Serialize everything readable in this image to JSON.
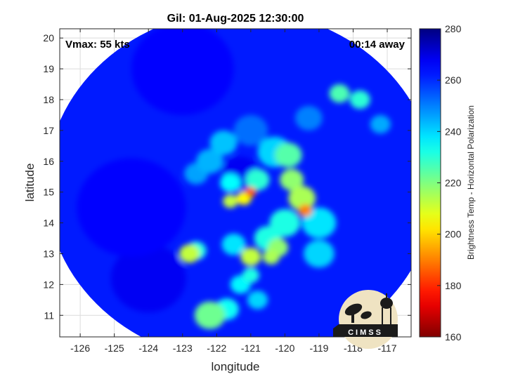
{
  "chart_data": {
    "type": "heatmap",
    "title": "Gil: 01-Aug-2025 12:30:00",
    "xlabel": "longitude",
    "ylabel": "latitude",
    "xlim": [
      -126.6,
      -116.3
    ],
    "ylim": [
      10.3,
      20.3
    ],
    "xticks": [
      -126,
      -125,
      -124,
      -123,
      -122,
      -121,
      -120,
      -119,
      -118,
      -117
    ],
    "yticks": [
      11,
      12,
      13,
      14,
      15,
      16,
      17,
      18,
      19,
      20
    ],
    "grid": true,
    "annotations": {
      "vmax": "Vmax: 55 kts",
      "offset": "00:14 away"
    },
    "colorbar": {
      "label": "Brightness Temp - Horizontal Polarization",
      "range": [
        160,
        280
      ],
      "ticks": [
        160,
        180,
        200,
        220,
        240,
        260,
        280
      ],
      "colormap": "jet"
    },
    "swath": {
      "center_lon": -121.3,
      "center_lat": 15.2,
      "radius_deg": 5.7
    },
    "background_temp": 262,
    "features": [
      {
        "lon": -121.3,
        "lat": 15.6,
        "r": 0.55,
        "temp": 268
      },
      {
        "lon": -121.0,
        "lat": 15.0,
        "r": 0.16,
        "temp": 185
      },
      {
        "lon": -121.2,
        "lat": 14.8,
        "r": 0.22,
        "temp": 205
      },
      {
        "lon": -121.6,
        "lat": 14.7,
        "r": 0.22,
        "temp": 212
      },
      {
        "lon": -120.8,
        "lat": 15.4,
        "r": 0.35,
        "temp": 230
      },
      {
        "lon": -121.6,
        "lat": 15.3,
        "r": 0.3,
        "temp": 235
      },
      {
        "lon": -120.3,
        "lat": 16.3,
        "r": 0.5,
        "temp": 240
      },
      {
        "lon": -119.9,
        "lat": 16.2,
        "r": 0.4,
        "temp": 225
      },
      {
        "lon": -119.8,
        "lat": 15.4,
        "r": 0.35,
        "temp": 218
      },
      {
        "lon": -119.4,
        "lat": 14.4,
        "r": 0.2,
        "temp": 190
      },
      {
        "lon": -119.5,
        "lat": 14.8,
        "r": 0.4,
        "temp": 215
      },
      {
        "lon": -120.0,
        "lat": 14.0,
        "r": 0.45,
        "temp": 232
      },
      {
        "lon": -119.0,
        "lat": 14.0,
        "r": 0.5,
        "temp": 238
      },
      {
        "lon": -120.5,
        "lat": 13.5,
        "r": 0.4,
        "temp": 232
      },
      {
        "lon": -120.2,
        "lat": 13.2,
        "r": 0.3,
        "temp": 218
      },
      {
        "lon": -121.0,
        "lat": 12.9,
        "r": 0.3,
        "temp": 212
      },
      {
        "lon": -120.4,
        "lat": 12.9,
        "r": 0.25,
        "temp": 215
      },
      {
        "lon": -121.5,
        "lat": 13.3,
        "r": 0.35,
        "temp": 238
      },
      {
        "lon": -122.8,
        "lat": 13.0,
        "r": 0.3,
        "temp": 212
      },
      {
        "lon": -122.6,
        "lat": 13.1,
        "r": 0.3,
        "temp": 232
      },
      {
        "lon": -122.2,
        "lat": 11.0,
        "r": 0.45,
        "temp": 222
      },
      {
        "lon": -121.7,
        "lat": 11.2,
        "r": 0.35,
        "temp": 234
      },
      {
        "lon": -121.3,
        "lat": 12.0,
        "r": 0.3,
        "temp": 236
      },
      {
        "lon": -121.0,
        "lat": 12.3,
        "r": 0.25,
        "temp": 232
      },
      {
        "lon": -120.8,
        "lat": 11.5,
        "r": 0.3,
        "temp": 240
      },
      {
        "lon": -122.2,
        "lat": 16.0,
        "r": 0.4,
        "temp": 244
      },
      {
        "lon": -121.8,
        "lat": 16.6,
        "r": 0.4,
        "temp": 242
      },
      {
        "lon": -122.6,
        "lat": 15.6,
        "r": 0.35,
        "temp": 246
      },
      {
        "lon": -119.0,
        "lat": 13.0,
        "r": 0.45,
        "temp": 240
      },
      {
        "lon": -118.4,
        "lat": 18.2,
        "r": 0.3,
        "temp": 226
      },
      {
        "lon": -117.8,
        "lat": 18.0,
        "r": 0.3,
        "temp": 230
      },
      {
        "lon": -117.2,
        "lat": 17.2,
        "r": 0.3,
        "temp": 245
      },
      {
        "lon": -119.3,
        "lat": 17.4,
        "r": 0.4,
        "temp": 250
      },
      {
        "lon": -121.0,
        "lat": 17.0,
        "r": 0.5,
        "temp": 252
      },
      {
        "lon": -124.5,
        "lat": 14.5,
        "r": 1.6,
        "temp": 266
      },
      {
        "lon": -123.0,
        "lat": 19.0,
        "r": 1.5,
        "temp": 265
      },
      {
        "lon": -124.0,
        "lat": 12.2,
        "r": 1.1,
        "temp": 268
      }
    ]
  },
  "logo": {
    "text": "CIMSS"
  }
}
